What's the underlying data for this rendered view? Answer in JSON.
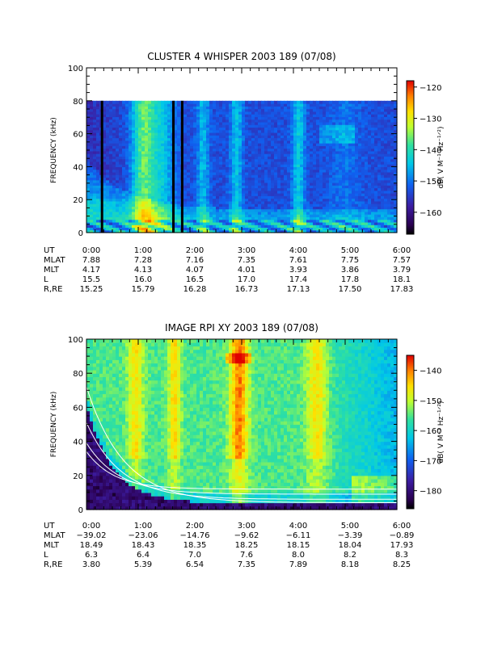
{
  "chart_data": [
    {
      "type": "heatmap",
      "title": "CLUSTER 4 WHISPER 2003 189 (07/08)",
      "ylabel": "FREQUENCY (kHz)",
      "ylim": [
        0,
        100
      ],
      "data_frequency_max": 80,
      "y_ticks": [
        "0",
        "20",
        "40",
        "60",
        "80",
        "100"
      ],
      "colorbar": {
        "label": "dB( V M⁻¹ Hz⁻¹ᐟ²)",
        "range": [
          -167,
          -118
        ],
        "ticks": [
          "-120",
          "-130",
          "-140",
          "-150",
          "-160"
        ]
      },
      "ephemeris": {
        "row_labels": [
          "UT",
          "MLAT",
          "MLT",
          "L",
          "R,RE"
        ],
        "columns": [
          [
            "0:00",
            "7.88",
            "4.17",
            "15.5",
            "15.25"
          ],
          [
            "1:00",
            "7.28",
            "4.13",
            "16.0",
            "15.79"
          ],
          [
            "2:00",
            "7.16",
            "4.07",
            "16.5",
            "16.28"
          ],
          [
            "3:00",
            "7.35",
            "4.01",
            "17.0",
            "16.73"
          ],
          [
            "4:00",
            "7.61",
            "3.93",
            "17.4",
            "17.13"
          ],
          [
            "5:00",
            "7.75",
            "3.86",
            "17.8",
            "17.50"
          ],
          [
            "6:00",
            "7.57",
            "3.79",
            "18.1",
            "17.83"
          ]
        ]
      }
    },
    {
      "type": "heatmap",
      "title": "IMAGE RPI XY 2003 189 (07/08)",
      "ylabel": "FREQUENCY (kHz)",
      "ylim": [
        0,
        100
      ],
      "y_ticks": [
        "0",
        "20",
        "40",
        "60",
        "80",
        "100"
      ],
      "colorbar": {
        "label": "dB( V M⁻¹ Hz⁻¹ᐟ²)",
        "range": [
          -186,
          -135
        ],
        "ticks": [
          "-140",
          "-150",
          "-160",
          "-170",
          "-180"
        ]
      },
      "ephemeris": {
        "row_labels": [
          "UT",
          "MLAT",
          "MLT",
          "L",
          "R,RE"
        ],
        "columns": [
          [
            "0:00",
            "-39.02",
            "18.49",
            "6.3",
            "3.80"
          ],
          [
            "1:00",
            "-23.06",
            "18.43",
            "6.4",
            "5.39"
          ],
          [
            "2:00",
            "-14.76",
            "18.35",
            "7.0",
            "6.54"
          ],
          [
            "3:00",
            "-9.62",
            "18.25",
            "7.6",
            "7.35"
          ],
          [
            "4:00",
            "-6.11",
            "18.15",
            "8.0",
            "7.89"
          ],
          [
            "5:00",
            "-3.39",
            "18.04",
            "8.2",
            "8.18"
          ],
          [
            "6:00",
            "-0.89",
            "17.93",
            "8.3",
            "8.25"
          ]
        ]
      }
    }
  ]
}
